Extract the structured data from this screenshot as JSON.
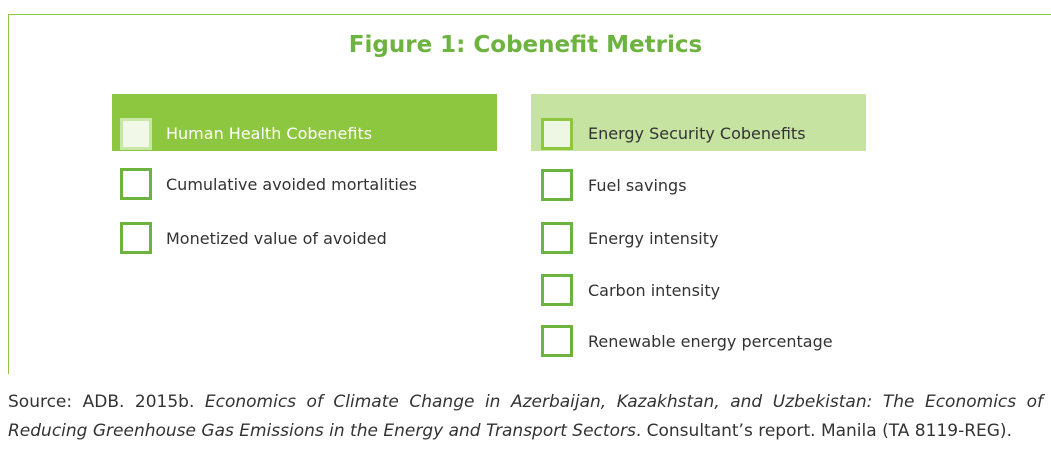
{
  "title": "Figure 1: Cobenefit Metrics",
  "left_group": {
    "header": "Human Health Cobenefits",
    "items": [
      "Cumulative avoided mortalities",
      "Monetized value of avoided"
    ]
  },
  "right_group": {
    "header": "Energy Security Cobenefits",
    "items": [
      "Fuel savings",
      "Energy intensity",
      "Carbon intensity",
      "Renewable energy percentage"
    ]
  },
  "source": {
    "prefix": "Source: ADB. 2015b.",
    "title": "Economics of Climate Change in Azerbaijan, Kazakhstan, and Uzbekistan: The Economics of Reducing Greenhouse Gas Emissions in the Energy and Transport Sectors",
    "suffix": ". Consultant’s report. Manila (TA 8119-REG)."
  }
}
